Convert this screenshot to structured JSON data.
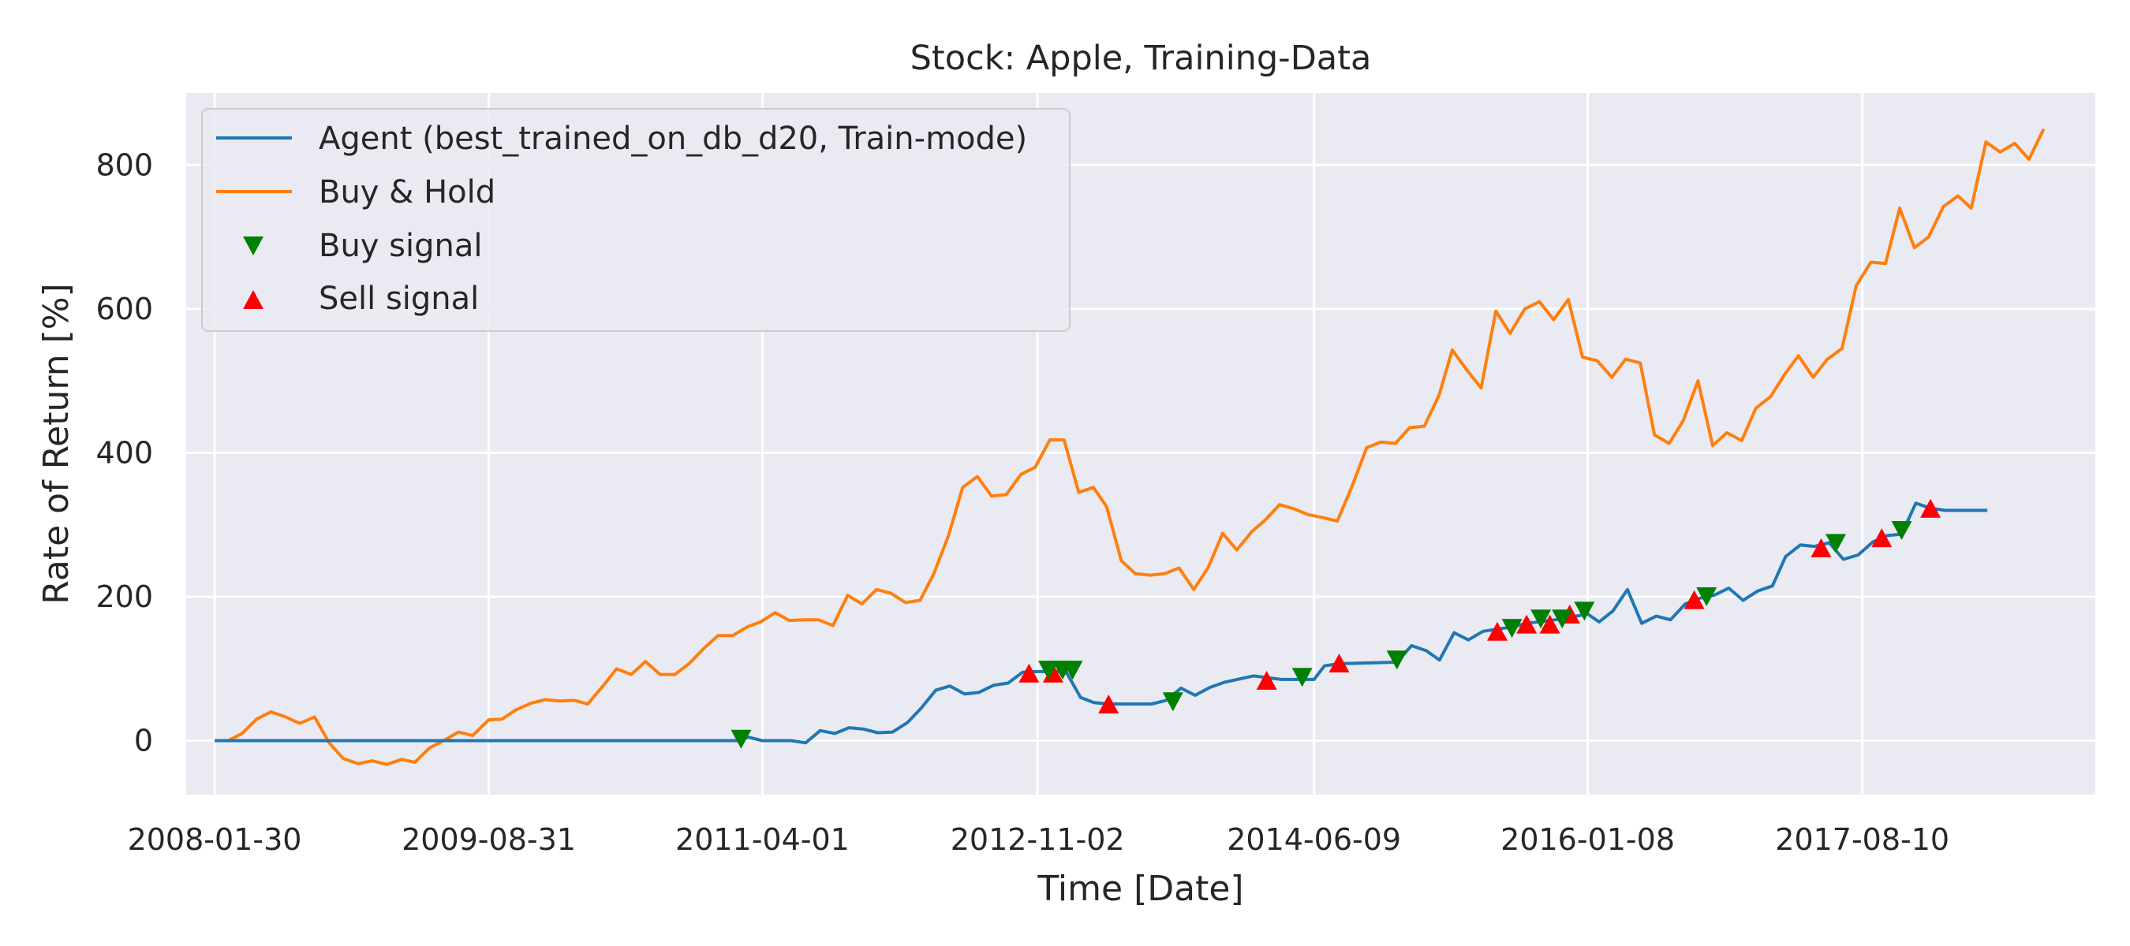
{
  "chart_data": {
    "type": "line",
    "title": "Stock: Apple, Training-Data",
    "xlabel": "Time [Date]",
    "ylabel": "Rate of Return [%]",
    "xlim": [
      "2007-12-01",
      "2018-12-15"
    ],
    "ylim": [
      -75,
      900
    ],
    "x_ticks": [
      "2008-01-30",
      "2009-08-31",
      "2011-04-01",
      "2012-11-02",
      "2014-06-09",
      "2016-01-08",
      "2017-08-10"
    ],
    "y_ticks": [
      0,
      200,
      400,
      600,
      800
    ],
    "grid": true,
    "legend_position": "top-left",
    "colors": {
      "background": "#EAEAF2",
      "grid": "#FFFFFF",
      "agent": "#1F77B4",
      "buyhold": "#FF7F0E",
      "buy": "#008000",
      "sell": "#FF0000"
    },
    "series": [
      {
        "name": "Agent (best_trained_on_db_d20, Train-mode)",
        "kind": "line",
        "points": [
          [
            "2008-01-30",
            0
          ],
          [
            "2011-02-15",
            0
          ],
          [
            "2011-03-01",
            5
          ],
          [
            "2011-04-01",
            0
          ],
          [
            "2011-05-01",
            0
          ],
          [
            "2011-06-01",
            0
          ],
          [
            "2011-07-01",
            -3
          ],
          [
            "2011-08-01",
            14
          ],
          [
            "2011-09-01",
            10
          ],
          [
            "2011-10-01",
            18
          ],
          [
            "2011-11-01",
            16
          ],
          [
            "2011-12-01",
            11
          ],
          [
            "2012-01-01",
            12
          ],
          [
            "2012-02-01",
            25
          ],
          [
            "2012-03-01",
            45
          ],
          [
            "2012-04-01",
            70
          ],
          [
            "2012-05-01",
            76
          ],
          [
            "2012-06-01",
            65
          ],
          [
            "2012-07-01",
            67
          ],
          [
            "2012-08-01",
            77
          ],
          [
            "2012-09-01",
            80
          ],
          [
            "2012-10-01",
            95
          ],
          [
            "2012-11-02",
            96
          ],
          [
            "2013-01-01",
            96
          ],
          [
            "2013-02-01",
            60
          ],
          [
            "2013-03-01",
            53
          ],
          [
            "2013-04-01",
            51
          ],
          [
            "2013-07-01",
            51
          ],
          [
            "2013-08-01",
            56
          ],
          [
            "2013-09-01",
            73
          ],
          [
            "2013-10-01",
            63
          ],
          [
            "2013-11-01",
            74
          ],
          [
            "2013-12-01",
            81
          ],
          [
            "2014-02-01",
            90
          ],
          [
            "2014-04-01",
            85
          ],
          [
            "2014-06-09",
            85
          ],
          [
            "2014-07-01",
            104
          ],
          [
            "2014-08-01",
            107
          ],
          [
            "2014-12-01",
            109
          ],
          [
            "2015-01-01",
            132
          ],
          [
            "2015-02-01",
            125
          ],
          [
            "2015-03-01",
            112
          ],
          [
            "2015-04-01",
            150
          ],
          [
            "2015-05-01",
            140
          ],
          [
            "2015-06-01",
            152
          ],
          [
            "2015-08-01",
            158
          ],
          [
            "2015-09-01",
            163
          ],
          [
            "2015-11-01",
            168
          ],
          [
            "2016-01-08",
            176
          ],
          [
            "2016-02-01",
            165
          ],
          [
            "2016-03-01",
            180
          ],
          [
            "2016-04-01",
            210
          ],
          [
            "2016-05-01",
            163
          ],
          [
            "2016-06-01",
            173
          ],
          [
            "2016-07-01",
            168
          ],
          [
            "2016-08-01",
            190
          ],
          [
            "2016-09-01",
            198
          ],
          [
            "2016-10-01",
            202
          ],
          [
            "2016-11-01",
            212
          ],
          [
            "2016-12-01",
            195
          ],
          [
            "2017-01-01",
            208
          ],
          [
            "2017-02-01",
            215
          ],
          [
            "2017-03-01",
            256
          ],
          [
            "2017-04-01",
            272
          ],
          [
            "2017-05-01",
            270
          ],
          [
            "2017-06-01",
            275
          ],
          [
            "2017-07-01",
            252
          ],
          [
            "2017-08-01",
            258
          ],
          [
            "2017-09-01",
            276
          ],
          [
            "2017-10-01",
            285
          ],
          [
            "2017-11-01",
            287
          ],
          [
            "2017-12-01",
            330
          ],
          [
            "2018-01-01",
            323
          ],
          [
            "2018-02-01",
            320
          ],
          [
            "2018-05-01",
            320
          ]
        ]
      },
      {
        "name": "Buy & Hold",
        "kind": "line",
        "points": [
          [
            "2008-01-30",
            0
          ],
          [
            "2008-02-28",
            0
          ],
          [
            "2008-03-28",
            10
          ],
          [
            "2008-04-28",
            30
          ],
          [
            "2008-05-28",
            40
          ],
          [
            "2008-06-28",
            33
          ],
          [
            "2008-07-28",
            24
          ],
          [
            "2008-08-28",
            33
          ],
          [
            "2008-09-28",
            -3
          ],
          [
            "2008-10-28",
            -25
          ],
          [
            "2008-11-28",
            -32
          ],
          [
            "2008-12-28",
            -28
          ],
          [
            "2009-01-28",
            -33
          ],
          [
            "2009-02-28",
            -26
          ],
          [
            "2009-03-28",
            -30
          ],
          [
            "2009-04-28",
            -10
          ],
          [
            "2009-05-28",
            0
          ],
          [
            "2009-06-28",
            12
          ],
          [
            "2009-07-28",
            7
          ],
          [
            "2009-08-31",
            29
          ],
          [
            "2009-09-28",
            30
          ],
          [
            "2009-10-28",
            43
          ],
          [
            "2009-11-28",
            52
          ],
          [
            "2009-12-28",
            57
          ],
          [
            "2010-01-28",
            55
          ],
          [
            "2010-02-28",
            56
          ],
          [
            "2010-03-28",
            51
          ],
          [
            "2010-04-28",
            75
          ],
          [
            "2010-05-28",
            100
          ],
          [
            "2010-06-28",
            92
          ],
          [
            "2010-07-28",
            110
          ],
          [
            "2010-08-28",
            92
          ],
          [
            "2010-09-28",
            92
          ],
          [
            "2010-10-28",
            107
          ],
          [
            "2010-11-28",
            128
          ],
          [
            "2010-12-28",
            146
          ],
          [
            "2011-01-28",
            146
          ],
          [
            "2011-02-28",
            158
          ],
          [
            "2011-03-28",
            165
          ],
          [
            "2011-04-28",
            178
          ],
          [
            "2011-05-28",
            167
          ],
          [
            "2011-06-28",
            168
          ],
          [
            "2011-07-28",
            168
          ],
          [
            "2011-08-28",
            160
          ],
          [
            "2011-09-28",
            202
          ],
          [
            "2011-10-28",
            190
          ],
          [
            "2011-11-28",
            210
          ],
          [
            "2011-12-28",
            205
          ],
          [
            "2012-01-28",
            192
          ],
          [
            "2012-02-28",
            195
          ],
          [
            "2012-03-28",
            232
          ],
          [
            "2012-04-28",
            285
          ],
          [
            "2012-05-28",
            352
          ],
          [
            "2012-06-28",
            367
          ],
          [
            "2012-07-28",
            340
          ],
          [
            "2012-08-28",
            342
          ],
          [
            "2012-09-28",
            370
          ],
          [
            "2012-10-28",
            380
          ],
          [
            "2012-11-28",
            418
          ],
          [
            "2012-12-28",
            418
          ],
          [
            "2013-01-28",
            345
          ],
          [
            "2013-02-28",
            352
          ],
          [
            "2013-03-28",
            325
          ],
          [
            "2013-04-28",
            250
          ],
          [
            "2013-05-28",
            232
          ],
          [
            "2013-06-28",
            230
          ],
          [
            "2013-07-28",
            232
          ],
          [
            "2013-08-28",
            240
          ],
          [
            "2013-09-28",
            210
          ],
          [
            "2013-10-28",
            240
          ],
          [
            "2013-11-28",
            288
          ],
          [
            "2013-12-28",
            265
          ],
          [
            "2014-01-28",
            290
          ],
          [
            "2014-02-28",
            308
          ],
          [
            "2014-03-28",
            328
          ],
          [
            "2014-04-28",
            322
          ],
          [
            "2014-05-28",
            314
          ],
          [
            "2014-06-28",
            310
          ],
          [
            "2014-07-28",
            305
          ],
          [
            "2014-08-28",
            353
          ],
          [
            "2014-09-28",
            407
          ],
          [
            "2014-10-28",
            415
          ],
          [
            "2014-11-28",
            413
          ],
          [
            "2014-12-28",
            435
          ],
          [
            "2015-01-28",
            437
          ],
          [
            "2015-02-28",
            480
          ],
          [
            "2015-03-28",
            543
          ],
          [
            "2015-04-28",
            515
          ],
          [
            "2015-05-28",
            490
          ],
          [
            "2015-06-28",
            597
          ],
          [
            "2015-07-28",
            566
          ],
          [
            "2015-08-28",
            600
          ],
          [
            "2015-09-28",
            610
          ],
          [
            "2015-10-28",
            585
          ],
          [
            "2015-11-28",
            613
          ],
          [
            "2015-12-28",
            533
          ],
          [
            "2016-01-28",
            528
          ],
          [
            "2016-02-28",
            505
          ],
          [
            "2016-03-28",
            530
          ],
          [
            "2016-04-28",
            525
          ],
          [
            "2016-05-28",
            425
          ],
          [
            "2016-06-28",
            413
          ],
          [
            "2016-07-28",
            445
          ],
          [
            "2016-08-28",
            500
          ],
          [
            "2016-09-28",
            410
          ],
          [
            "2016-10-28",
            428
          ],
          [
            "2016-11-28",
            417
          ],
          [
            "2016-12-28",
            462
          ],
          [
            "2017-01-28",
            478
          ],
          [
            "2017-02-28",
            510
          ],
          [
            "2017-03-28",
            535
          ],
          [
            "2017-04-28",
            505
          ],
          [
            "2017-05-28",
            530
          ],
          [
            "2017-06-28",
            545
          ],
          [
            "2017-07-28",
            632
          ],
          [
            "2017-08-28",
            665
          ],
          [
            "2017-09-28",
            663
          ],
          [
            "2017-10-28",
            740
          ],
          [
            "2017-11-28",
            685
          ],
          [
            "2017-12-28",
            700
          ],
          [
            "2018-01-28",
            742
          ],
          [
            "2018-02-28",
            757
          ],
          [
            "2018-03-28",
            740
          ],
          [
            "2018-04-28",
            832
          ],
          [
            "2018-05-28",
            818
          ],
          [
            "2018-06-28",
            830
          ],
          [
            "2018-07-28",
            808
          ],
          [
            "2018-08-28",
            850
          ]
        ]
      },
      {
        "name": "Buy signal",
        "kind": "marker",
        "marker": "triangle-down",
        "points": [
          [
            "2011-02-15",
            2
          ],
          [
            "2012-11-25",
            98
          ],
          [
            "2012-12-25",
            98
          ],
          [
            "2013-01-15",
            98
          ],
          [
            "2013-08-15",
            54
          ],
          [
            "2014-05-15",
            88
          ],
          [
            "2014-12-01",
            112
          ],
          [
            "2015-08-01",
            156
          ],
          [
            "2015-10-01",
            169
          ],
          [
            "2015-11-15",
            169
          ],
          [
            "2016-01-01",
            180
          ],
          [
            "2016-09-15",
            200
          ],
          [
            "2017-06-15",
            274
          ],
          [
            "2017-11-01",
            292
          ]
        ]
      },
      {
        "name": "Sell signal",
        "kind": "marker",
        "marker": "triangle-up",
        "points": [
          [
            "2012-10-15",
            94
          ],
          [
            "2012-12-05",
            94
          ],
          [
            "2013-04-01",
            51
          ],
          [
            "2014-03-01",
            84
          ],
          [
            "2014-08-01",
            108
          ],
          [
            "2015-07-01",
            152
          ],
          [
            "2015-09-01",
            162
          ],
          [
            "2015-10-20",
            162
          ],
          [
            "2015-12-01",
            176
          ],
          [
            "2016-08-20",
            196
          ],
          [
            "2017-05-15",
            268
          ],
          [
            "2017-09-20",
            282
          ],
          [
            "2018-01-01",
            323
          ]
        ]
      }
    ]
  }
}
